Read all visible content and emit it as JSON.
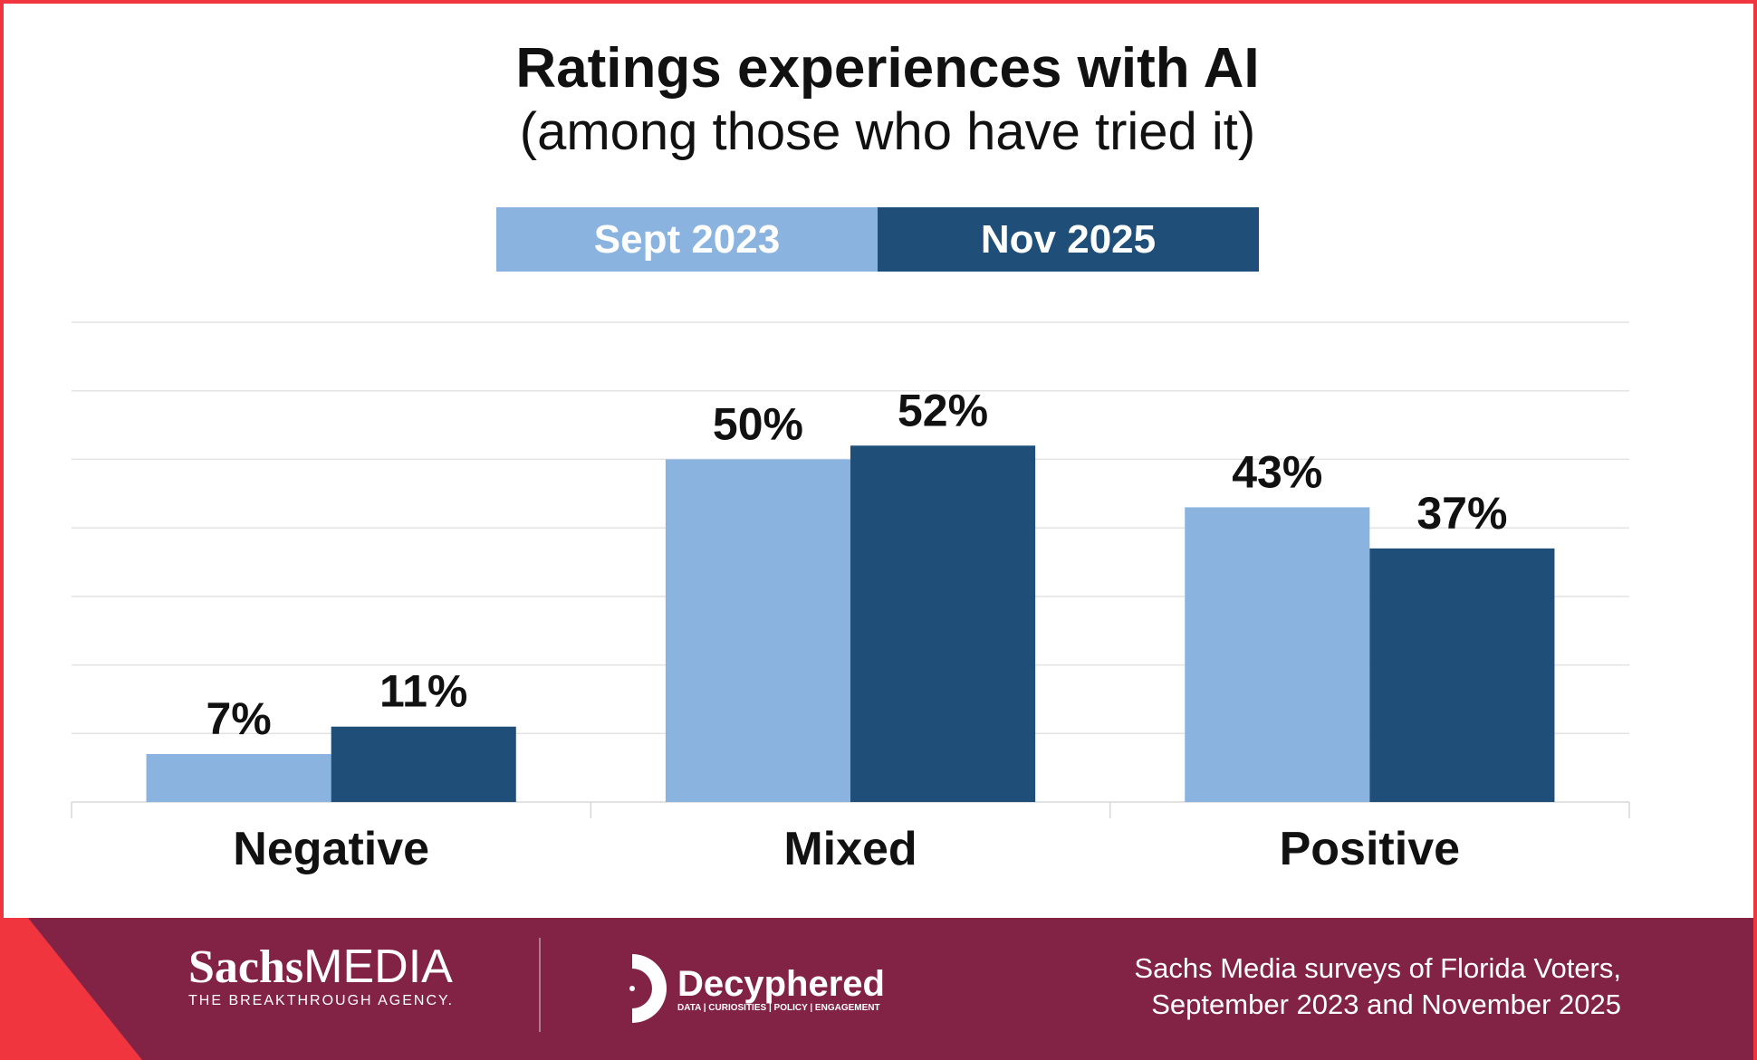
{
  "chart_data": {
    "type": "bar",
    "title": "Ratings experiences with AI",
    "subtitle": "(among those who have tried it)",
    "categories": [
      "Negative",
      "Mixed",
      "Positive"
    ],
    "series": [
      {
        "name": "Sept 2023",
        "color": "#8ab4df",
        "values": [
          7,
          50,
          43
        ],
        "labels": [
          "7%",
          "50%",
          "43%"
        ]
      },
      {
        "name": "Nov 2025",
        "color": "#1f4e79",
        "values": [
          11,
          52,
          37
        ],
        "labels": [
          "11%",
          "52%",
          "37%"
        ]
      }
    ],
    "ylim": [
      0,
      70
    ],
    "grid": true,
    "legend_position": "top-center",
    "xlabel": "",
    "ylabel": ""
  },
  "footer": {
    "sachs_brand_bold": "Sachs",
    "sachs_brand_light": "MEDIA",
    "sachs_tagline": "THE BREAKTHROUGH AGENCY.",
    "decyphered_name": "Decyphered",
    "decyphered_tagline": "DATA | CURIOSITIES | POLICY | ENGAGEMENT",
    "source_line1": "Sachs Media surveys of Florida Voters,",
    "source_line2": "September 2023 and November 2025"
  }
}
